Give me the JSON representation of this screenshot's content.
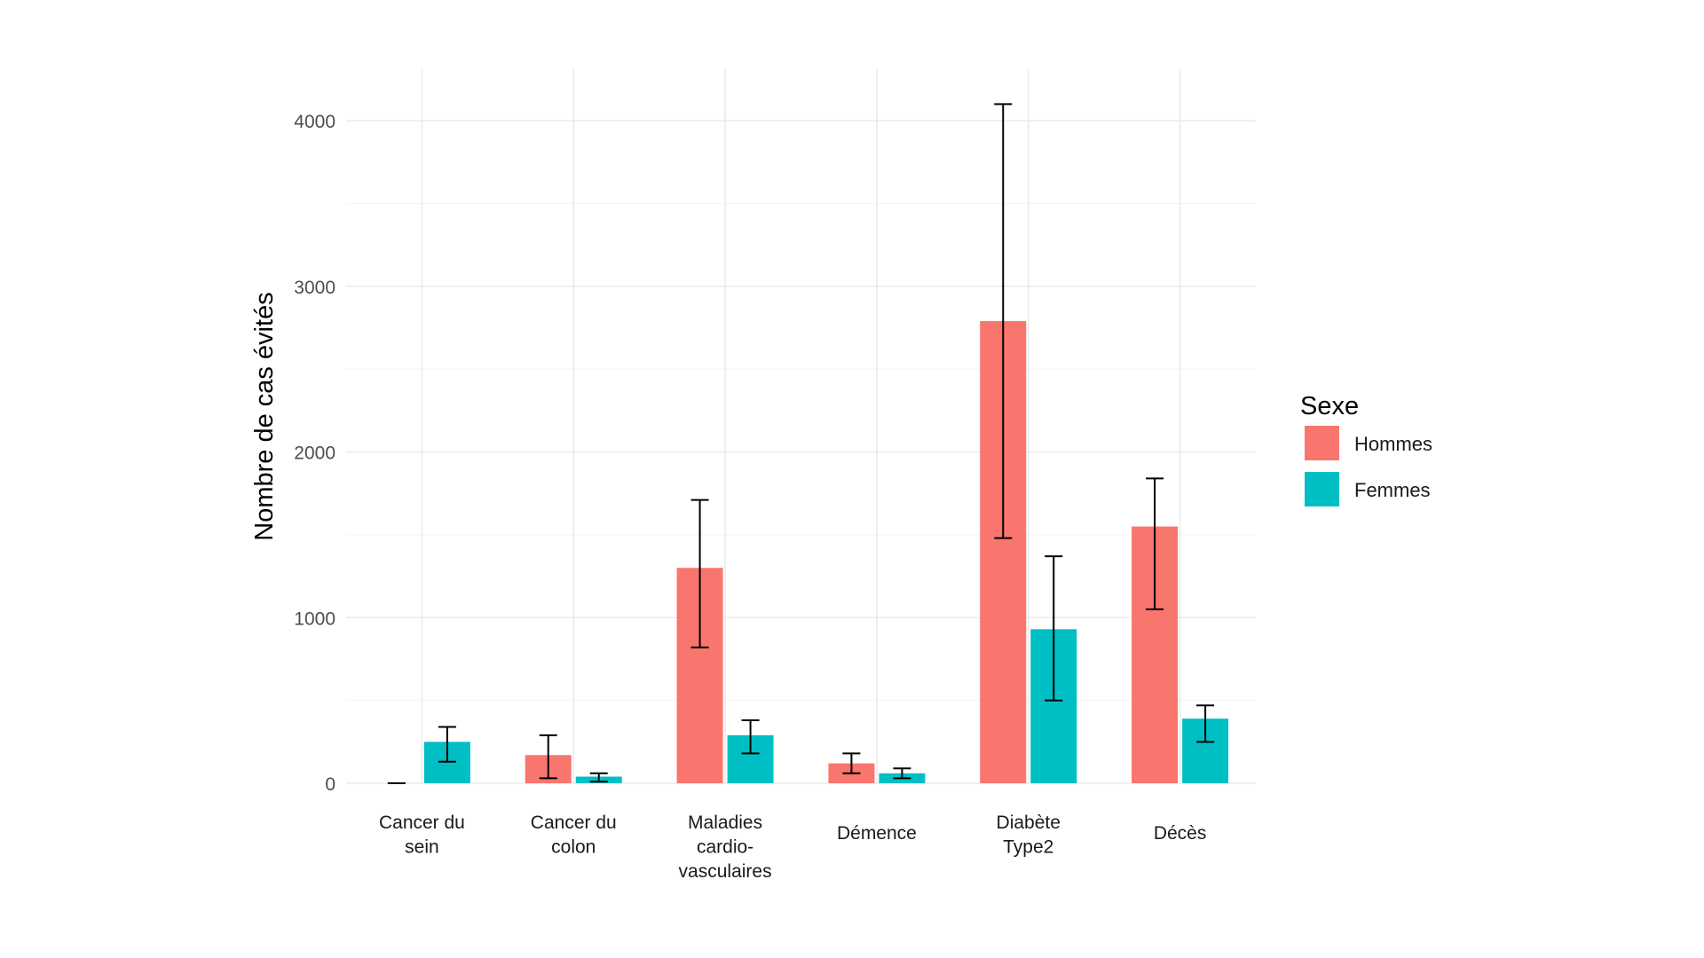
{
  "chart_data": {
    "type": "bar",
    "title": "",
    "xlabel": "",
    "ylabel": "Nombre de cas évités",
    "ylim": [
      0,
      4000
    ],
    "yticks": [
      "0",
      "1000",
      "2000",
      "3000",
      "4000"
    ],
    "grid": true,
    "legend": {
      "title": "Sexe",
      "placement": "right"
    },
    "categories": [
      [
        "Cancer du",
        "sein"
      ],
      [
        "Cancer du",
        "colon"
      ],
      [
        "Maladies",
        "cardio-",
        "vasculaires"
      ],
      [
        "Démence"
      ],
      [
        "Diabète",
        "Type2"
      ],
      [
        "Décès"
      ]
    ],
    "series": [
      {
        "name": "Hommes",
        "color": "#F8766D",
        "values": [
          0,
          170,
          1300,
          120,
          2790,
          1550
        ],
        "error_low": [
          0,
          30,
          820,
          60,
          1480,
          1050
        ],
        "error_high": [
          0,
          290,
          1710,
          180,
          4100,
          1840
        ]
      },
      {
        "name": "Femmes",
        "color": "#00BFC4",
        "values": [
          250,
          40,
          290,
          60,
          930,
          390
        ],
        "error_low": [
          130,
          10,
          180,
          30,
          500,
          250
        ],
        "error_high": [
          340,
          60,
          380,
          90,
          1370,
          470
        ]
      }
    ]
  }
}
